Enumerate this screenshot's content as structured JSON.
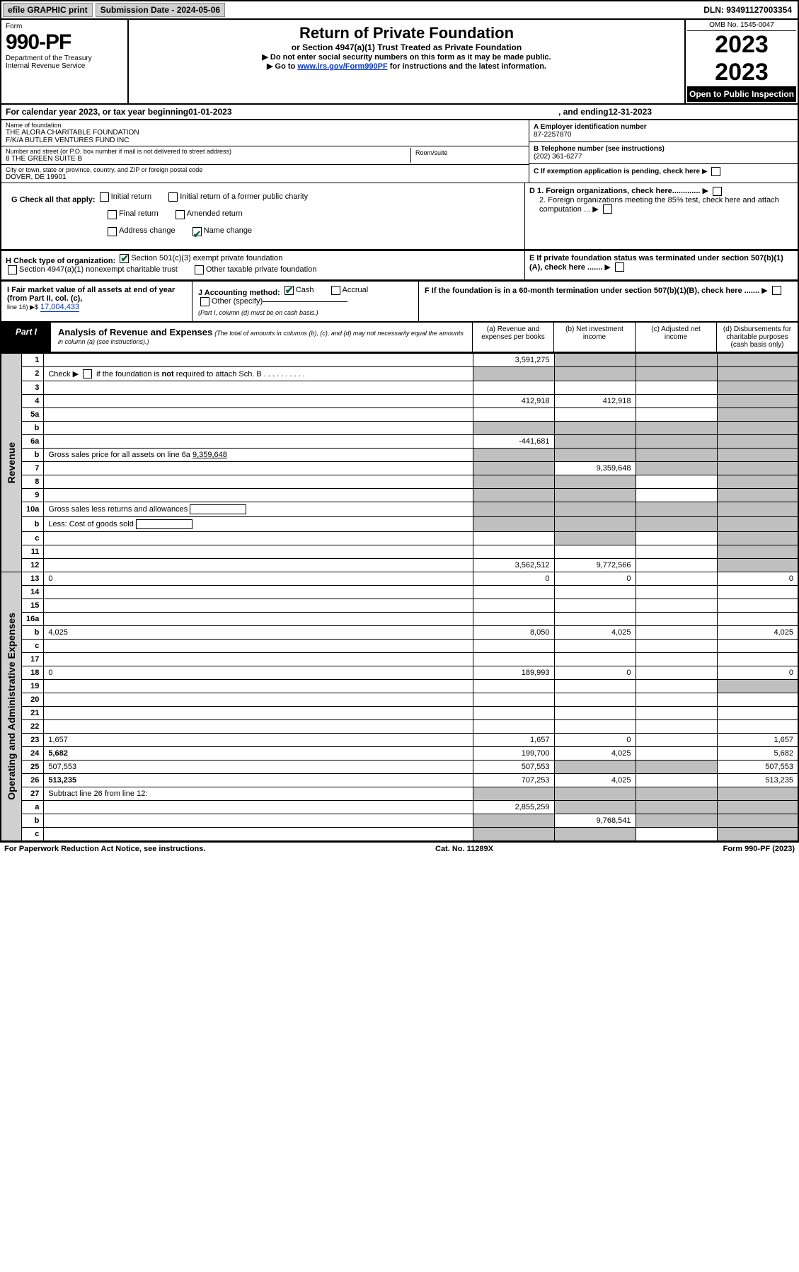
{
  "top_bar": {
    "efile_label": "efile GRAPHIC print",
    "submission_date_label": "Submission Date - 2024-05-06",
    "dln": "DLN: 93491127003354"
  },
  "header": {
    "form_label": "Form",
    "form_number": "990-PF",
    "dept": "Department of the Treasury",
    "irs": "Internal Revenue Service",
    "title": "Return of Private Foundation",
    "subtitle": "or Section 4947(a)(1) Trust Treated as Private Foundation",
    "note1": "▶ Do not enter social security numbers on this form as it may be made public.",
    "note2_prefix": "▶ Go to ",
    "note2_link": "www.irs.gov/Form990PF",
    "note2_suffix": " for instructions and the latest information.",
    "omb": "OMB No. 1545-0047",
    "year": "2023",
    "open": "Open to Public Inspection"
  },
  "cal_year": {
    "prefix": "For calendar year 2023, or tax year beginning ",
    "begin": "01-01-2023",
    "mid": " , and ending ",
    "end": "12-31-2023"
  },
  "foundation": {
    "name_label": "Name of foundation",
    "name1": "THE ALORA CHARITABLE FOUNDATION",
    "name2": "F/K/A BUTLER VENTURES FUND INC",
    "addr_label": "Number and street (or P.O. box number if mail is not delivered to street address)",
    "addr": "8 THE GREEN SUITE B",
    "room_label": "Room/suite",
    "city_label": "City or town, state or province, country, and ZIP or foreign postal code",
    "city": "DOVER, DE  19901",
    "ein_label": "A  Employer identification number",
    "ein": "87-2257870",
    "phone_label": "B  Telephone number (see instructions)",
    "phone": "(202) 361-6277",
    "c_label": "C  If exemption application is pending, check here",
    "d1": "D 1. Foreign organizations, check here.............",
    "d2": "2. Foreign organizations meeting the 85% test, check here and attach computation ...",
    "e_label": "E  If private foundation status was terminated under section 507(b)(1)(A), check here .......",
    "f_label": "F  If the foundation is in a 60-month termination under section 507(b)(1)(B), check here ......."
  },
  "g": {
    "label": "G Check all that apply:",
    "initial_return": "Initial return",
    "initial_former": "Initial return of a former public charity",
    "final_return": "Final return",
    "amended": "Amended return",
    "address_change": "Address change",
    "name_change": "Name change"
  },
  "h": {
    "label": "H Check type of organization:",
    "opt1": "Section 501(c)(3) exempt private foundation",
    "opt2": "Section 4947(a)(1) nonexempt charitable trust",
    "opt3": "Other taxable private foundation"
  },
  "i": {
    "label": "I Fair market value of all assets at end of year (from Part II, col. (c),",
    "line16": "line 16) ▶$",
    "value": "17,004,433"
  },
  "j": {
    "label": "J Accounting method:",
    "cash": "Cash",
    "accrual": "Accrual",
    "other": "Other (specify)",
    "note": "(Part I, column (d) must be on cash basis.)"
  },
  "part1": {
    "label": "Part I",
    "title": "Analysis of Revenue and Expenses",
    "note": "(The total of amounts in columns (b), (c), and (d) may not necessarily equal the amounts in column (a) (see instructions).)",
    "col_a": "(a) Revenue and expenses per books",
    "col_b": "(b) Net investment income",
    "col_c": "(c) Adjusted net income",
    "col_d": "(d) Disbursements for charitable purposes (cash basis only)"
  },
  "rows": {
    "1": {
      "n": "1",
      "d": "",
      "a": "3,591,275",
      "b": "",
      "c": "",
      "grey": [
        "b",
        "c",
        "d"
      ]
    },
    "2": {
      "n": "2",
      "d": "",
      "a": "",
      "b": "",
      "c": "",
      "grey": [
        "a",
        "b",
        "c",
        "d"
      ],
      "bold_not": true
    },
    "3": {
      "n": "3",
      "d": "",
      "a": "",
      "b": "",
      "c": "",
      "grey": [
        "d"
      ]
    },
    "4": {
      "n": "4",
      "d": "",
      "a": "412,918",
      "b": "412,918",
      "c": "",
      "grey": [
        "d"
      ]
    },
    "5a": {
      "n": "5a",
      "d": "",
      "a": "",
      "b": "",
      "c": "",
      "grey": [
        "d"
      ]
    },
    "5b": {
      "n": "b",
      "d": "",
      "a": "",
      "b": "",
      "c": "",
      "grey": [
        "a",
        "b",
        "c",
        "d"
      ]
    },
    "6a": {
      "n": "6a",
      "d": "",
      "a": "-441,681",
      "b": "",
      "c": "",
      "grey": [
        "b",
        "c",
        "d"
      ]
    },
    "6b": {
      "n": "b",
      "d": "Gross sales price for all assets on line 6a",
      "v": "9,359,648",
      "grey": [
        "a",
        "b",
        "c",
        "d"
      ]
    },
    "7": {
      "n": "7",
      "d": "",
      "a": "",
      "b": "9,359,648",
      "c": "",
      "grey": [
        "a",
        "c",
        "d"
      ]
    },
    "8": {
      "n": "8",
      "d": "",
      "a": "",
      "b": "",
      "c": "",
      "grey": [
        "a",
        "b",
        "d"
      ]
    },
    "9": {
      "n": "9",
      "d": "",
      "a": "",
      "b": "",
      "c": "",
      "grey": [
        "a",
        "b",
        "d"
      ]
    },
    "10a": {
      "n": "10a",
      "d": "Gross sales less returns and allowances",
      "grey": [
        "a",
        "b",
        "c",
        "d"
      ]
    },
    "10b": {
      "n": "b",
      "d": "Less: Cost of goods sold",
      "grey": [
        "a",
        "b",
        "c",
        "d"
      ]
    },
    "10c": {
      "n": "c",
      "d": "",
      "a": "",
      "b": "",
      "c": "",
      "grey": [
        "b",
        "d"
      ]
    },
    "11": {
      "n": "11",
      "d": "",
      "a": "",
      "b": "",
      "c": "",
      "grey": [
        "d"
      ]
    },
    "12": {
      "n": "12",
      "d": "",
      "a": "3,562,512",
      "b": "9,772,566",
      "c": "",
      "grey": [
        "d"
      ],
      "bold": true
    },
    "13": {
      "n": "13",
      "d": "0",
      "a": "0",
      "b": "0",
      "c": ""
    },
    "14": {
      "n": "14",
      "d": "",
      "a": "",
      "b": "",
      "c": ""
    },
    "15": {
      "n": "15",
      "d": "",
      "a": "",
      "b": "",
      "c": ""
    },
    "16a": {
      "n": "16a",
      "d": "",
      "a": "",
      "b": "",
      "c": ""
    },
    "16b": {
      "n": "b",
      "d": "4,025",
      "a": "8,050",
      "b": "4,025",
      "c": ""
    },
    "16c": {
      "n": "c",
      "d": "",
      "a": "",
      "b": "",
      "c": ""
    },
    "17": {
      "n": "17",
      "d": "",
      "a": "",
      "b": "",
      "c": ""
    },
    "18": {
      "n": "18",
      "d": "0",
      "a": "189,993",
      "b": "0",
      "c": ""
    },
    "19": {
      "n": "19",
      "d": "",
      "a": "",
      "b": "",
      "c": "",
      "grey": [
        "d"
      ]
    },
    "20": {
      "n": "20",
      "d": "",
      "a": "",
      "b": "",
      "c": ""
    },
    "21": {
      "n": "21",
      "d": "",
      "a": "",
      "b": "",
      "c": ""
    },
    "22": {
      "n": "22",
      "d": "",
      "a": "",
      "b": "",
      "c": ""
    },
    "23": {
      "n": "23",
      "d": "1,657",
      "a": "1,657",
      "b": "0",
      "c": ""
    },
    "24": {
      "n": "24",
      "d": "5,682",
      "a": "199,700",
      "b": "4,025",
      "c": "",
      "bold": true
    },
    "25": {
      "n": "25",
      "d": "507,553",
      "a": "507,553",
      "b": "",
      "c": "",
      "grey": [
        "b",
        "c"
      ]
    },
    "26": {
      "n": "26",
      "d": "513,235",
      "a": "707,253",
      "b": "4,025",
      "c": "",
      "bold": true
    },
    "27": {
      "n": "27",
      "d": "Subtract line 26 from line 12:",
      "grey": [
        "a",
        "b",
        "c",
        "d"
      ]
    },
    "27a": {
      "n": "a",
      "d": "",
      "a": "2,855,259",
      "b": "",
      "c": "",
      "grey": [
        "b",
        "c",
        "d"
      ],
      "bold": true
    },
    "27b": {
      "n": "b",
      "d": "",
      "a": "",
      "b": "9,768,541",
      "c": "",
      "grey": [
        "a",
        "c",
        "d"
      ],
      "bold": true
    },
    "27c": {
      "n": "c",
      "d": "",
      "a": "",
      "b": "",
      "c": "",
      "grey": [
        "a",
        "b",
        "d"
      ],
      "bold": true
    }
  },
  "sidebars": {
    "revenue": "Revenue",
    "expenses": "Operating and Administrative Expenses"
  },
  "footer": {
    "left": "For Paperwork Reduction Act Notice, see instructions.",
    "mid": "Cat. No. 11289X",
    "right": "Form 990-PF (2023)"
  },
  "colors": {
    "bg": "#ffffff",
    "border": "#000000",
    "grey_cell": "#c0c0c0",
    "sidebar": "#d0d0d0",
    "link": "#0033cc",
    "check": "#006633"
  }
}
